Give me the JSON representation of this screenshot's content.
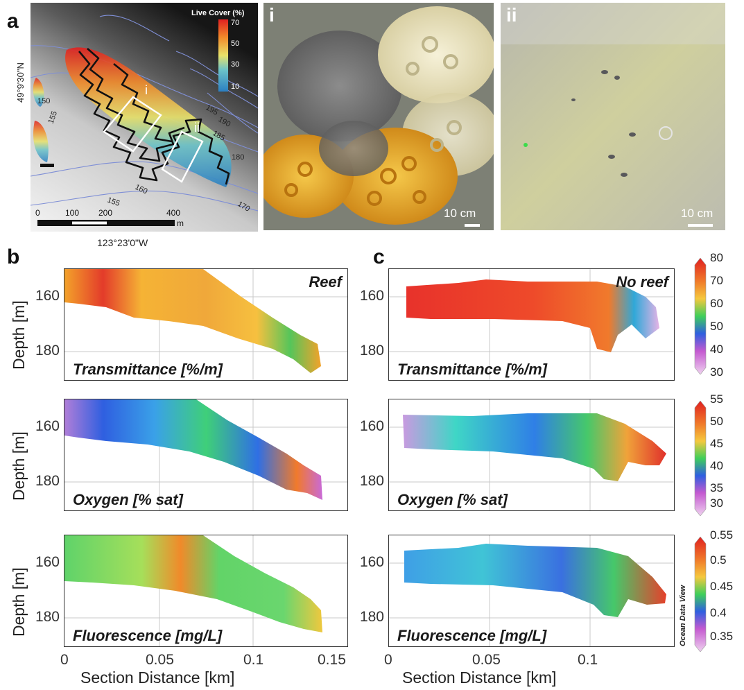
{
  "panel_labels": {
    "a": "a",
    "b": "b",
    "c": "c"
  },
  "map": {
    "legend_title": "Live Cover (%)",
    "legend_ticks": [
      "70",
      "50",
      "30",
      "10"
    ],
    "lat_label": "49°9'30\"N",
    "lon_label": "123°23'0\"W",
    "contours": [
      "150",
      "155",
      "195",
      "190",
      "185",
      "180",
      "160",
      "155",
      "170"
    ],
    "scale_ticks": [
      "0",
      "100",
      "200",
      "400"
    ],
    "scale_unit": "m",
    "box_labels": [
      "i",
      "ii"
    ]
  },
  "photos": {
    "i": {
      "letter": "i",
      "scale": "10 cm"
    },
    "ii": {
      "letter": "ii",
      "scale": "10 cm"
    }
  },
  "sections": {
    "ylabel": "Depth [m]",
    "xlabel": "Section Distance [km]",
    "yticks": [
      "160",
      "180"
    ],
    "xticks_b": [
      "0",
      "0.05",
      "0.1",
      "0.15"
    ],
    "xticks_c": [
      "0",
      "0.05",
      "0.1"
    ],
    "reef_label": "Reef",
    "noreef_label": "No reef",
    "rows": [
      {
        "title": "Transmittance [%/m]",
        "cbar": [
          "80",
          "70",
          "60",
          "50",
          "40",
          "30"
        ]
      },
      {
        "title": "Oxygen [% sat]",
        "cbar": [
          "55",
          "50",
          "45",
          "40",
          "35",
          "30"
        ]
      },
      {
        "title": "Fluorescence [mg/L]",
        "cbar": [
          "0.55",
          "0.5",
          "0.45",
          "0.4",
          "0.35"
        ]
      }
    ],
    "credit": "Ocean Data View"
  }
}
